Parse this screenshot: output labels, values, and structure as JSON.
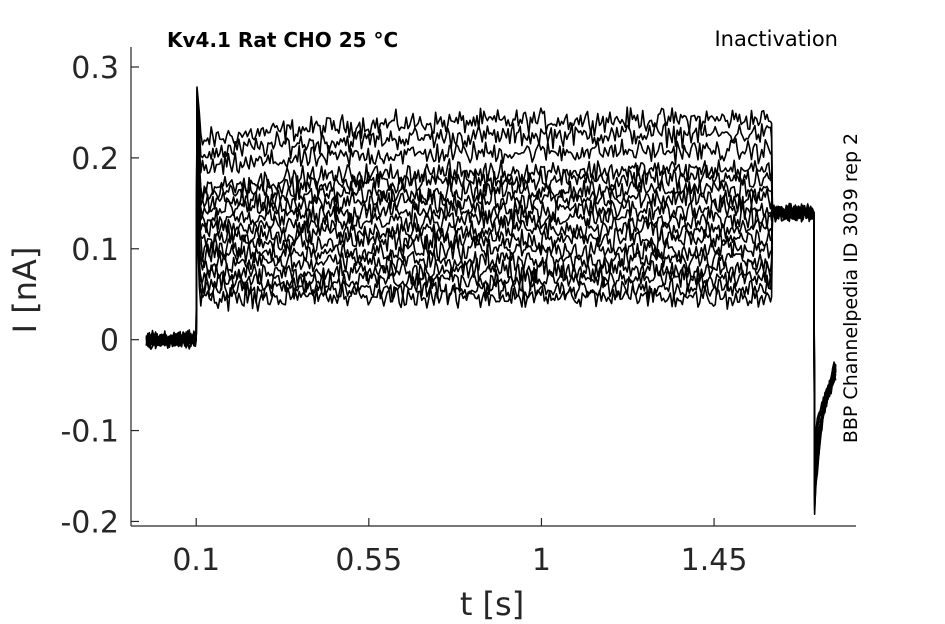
{
  "header": {
    "title": "Kv4.1  Rat  CHO  25 °C",
    "protocol": "Inactivation",
    "source": "BBP Channelpedia ID 3039 rep 2"
  },
  "chart_data": {
    "type": "line",
    "xlabel": "t [s]",
    "ylabel": "I [nA]",
    "xlim": [
      -0.07,
      1.82
    ],
    "ylim": [
      -0.205,
      0.322
    ],
    "x_ticks": [
      0.1,
      0.55,
      1,
      1.45
    ],
    "x_tick_labels": [
      "0.1",
      "0.55",
      "1",
      "1.45"
    ],
    "y_ticks": [
      0.3,
      0.2,
      0.1,
      0,
      -0.1,
      -0.2
    ],
    "y_tick_labels": [
      "0.3",
      "0.2",
      "0.1",
      "0",
      "-0.1",
      "-0.2"
    ],
    "line_color": "#000000",
    "protocol_times": {
      "baseline_start": -0.03,
      "step_on": 0.1,
      "step_off": 1.6,
      "test_end": 1.71,
      "trace_end": 1.77
    },
    "step_currents": [
      0.238,
      0.222,
      0.204,
      0.183,
      0.174,
      0.163,
      0.152,
      0.141,
      0.131,
      0.12,
      0.109,
      0.098,
      0.087,
      0.076,
      0.066,
      0.056,
      0.047
    ],
    "holding_current": 0.14,
    "peak_current_at_step": 0.278,
    "min_current_after_test": -0.192
  }
}
